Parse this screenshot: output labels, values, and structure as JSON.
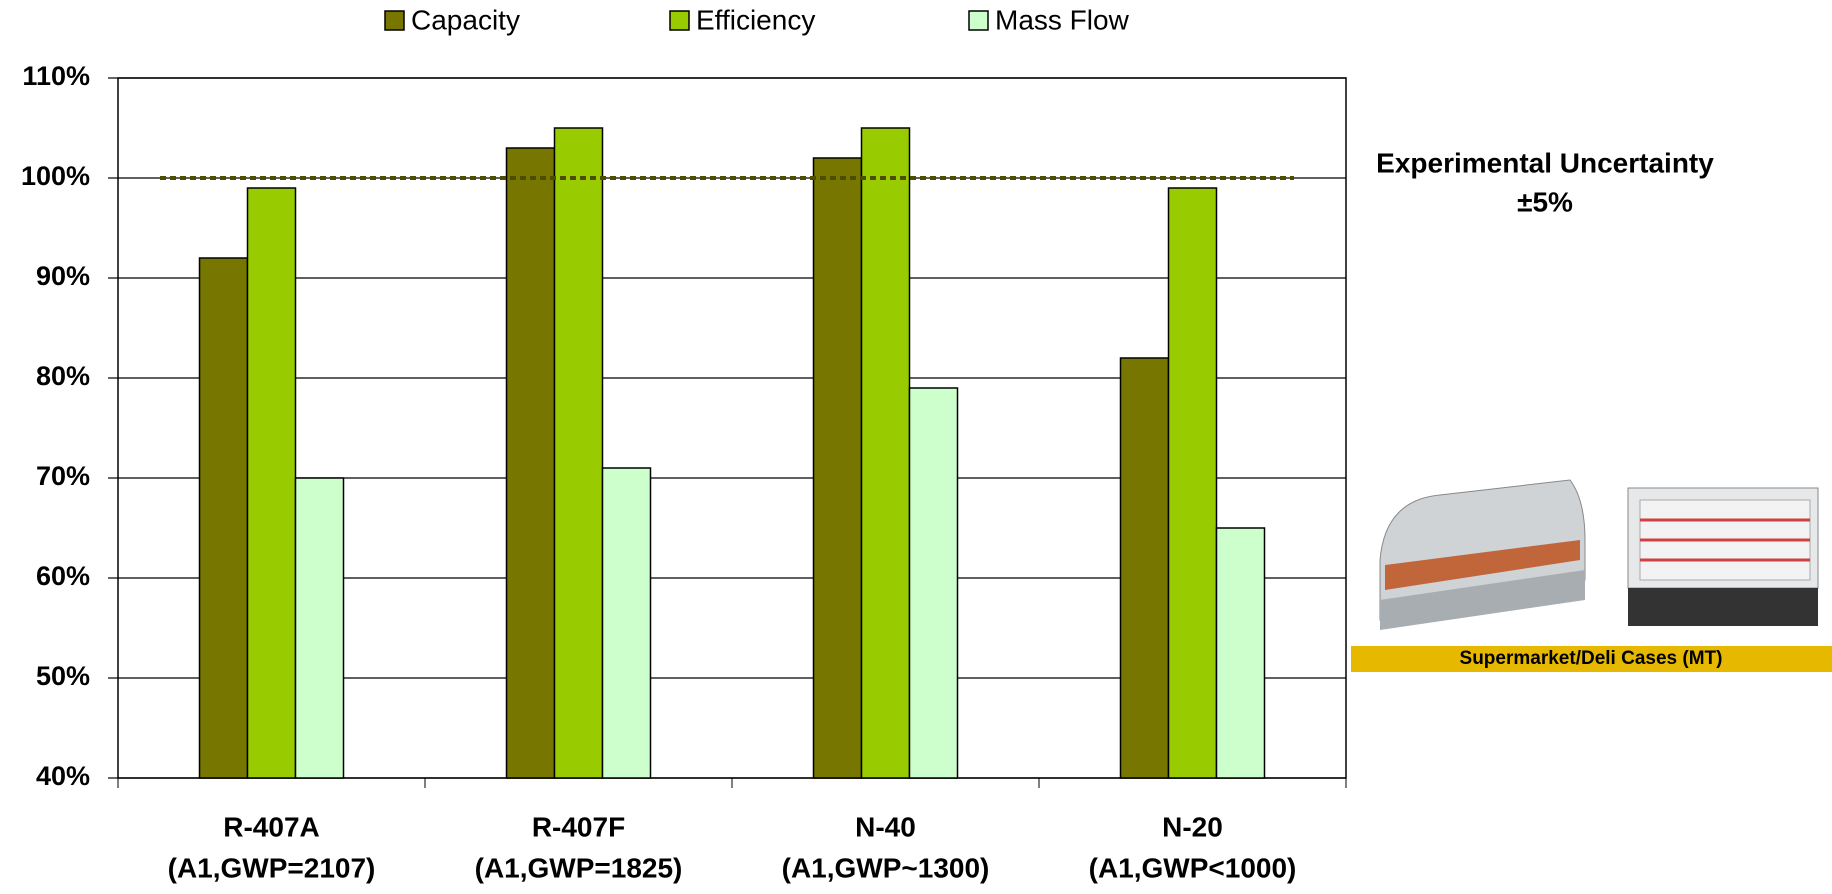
{
  "chart_data": {
    "type": "bar",
    "categories": [
      "R-407A",
      "R-407F",
      "N-40",
      "N-20"
    ],
    "category_notes": [
      "(A1,GWP=2107)",
      "(A1,GWP=1825)",
      "(A1,GWP~1300)",
      "(A1,GWP<1000)"
    ],
    "series": [
      {
        "name": "Capacity",
        "color": "#767600",
        "values": [
          92,
          103,
          102,
          82
        ]
      },
      {
        "name": "Efficiency",
        "color": "#99cc00",
        "values": [
          99,
          105,
          105,
          99
        ]
      },
      {
        "name": "Mass Flow",
        "color": "#ccffcc",
        "values": [
          70,
          71,
          79,
          65
        ]
      }
    ],
    "ylim": [
      40,
      110
    ],
    "yticks": [
      {
        "value": 40,
        "label": "40%"
      },
      {
        "value": 50,
        "label": "50%"
      },
      {
        "value": 60,
        "label": "60%"
      },
      {
        "value": 70,
        "label": "70%"
      },
      {
        "value": 80,
        "label": "80%"
      },
      {
        "value": 90,
        "label": "90%"
      },
      {
        "value": 100,
        "label": "100%"
      },
      {
        "value": 110,
        "label": "110%"
      }
    ],
    "grid": true,
    "reference_line": 100,
    "annotation": {
      "title": "Experimental Uncertainty",
      "range": "±5%"
    },
    "image_caption": "Supermarket/Deli Cases (MT)"
  }
}
